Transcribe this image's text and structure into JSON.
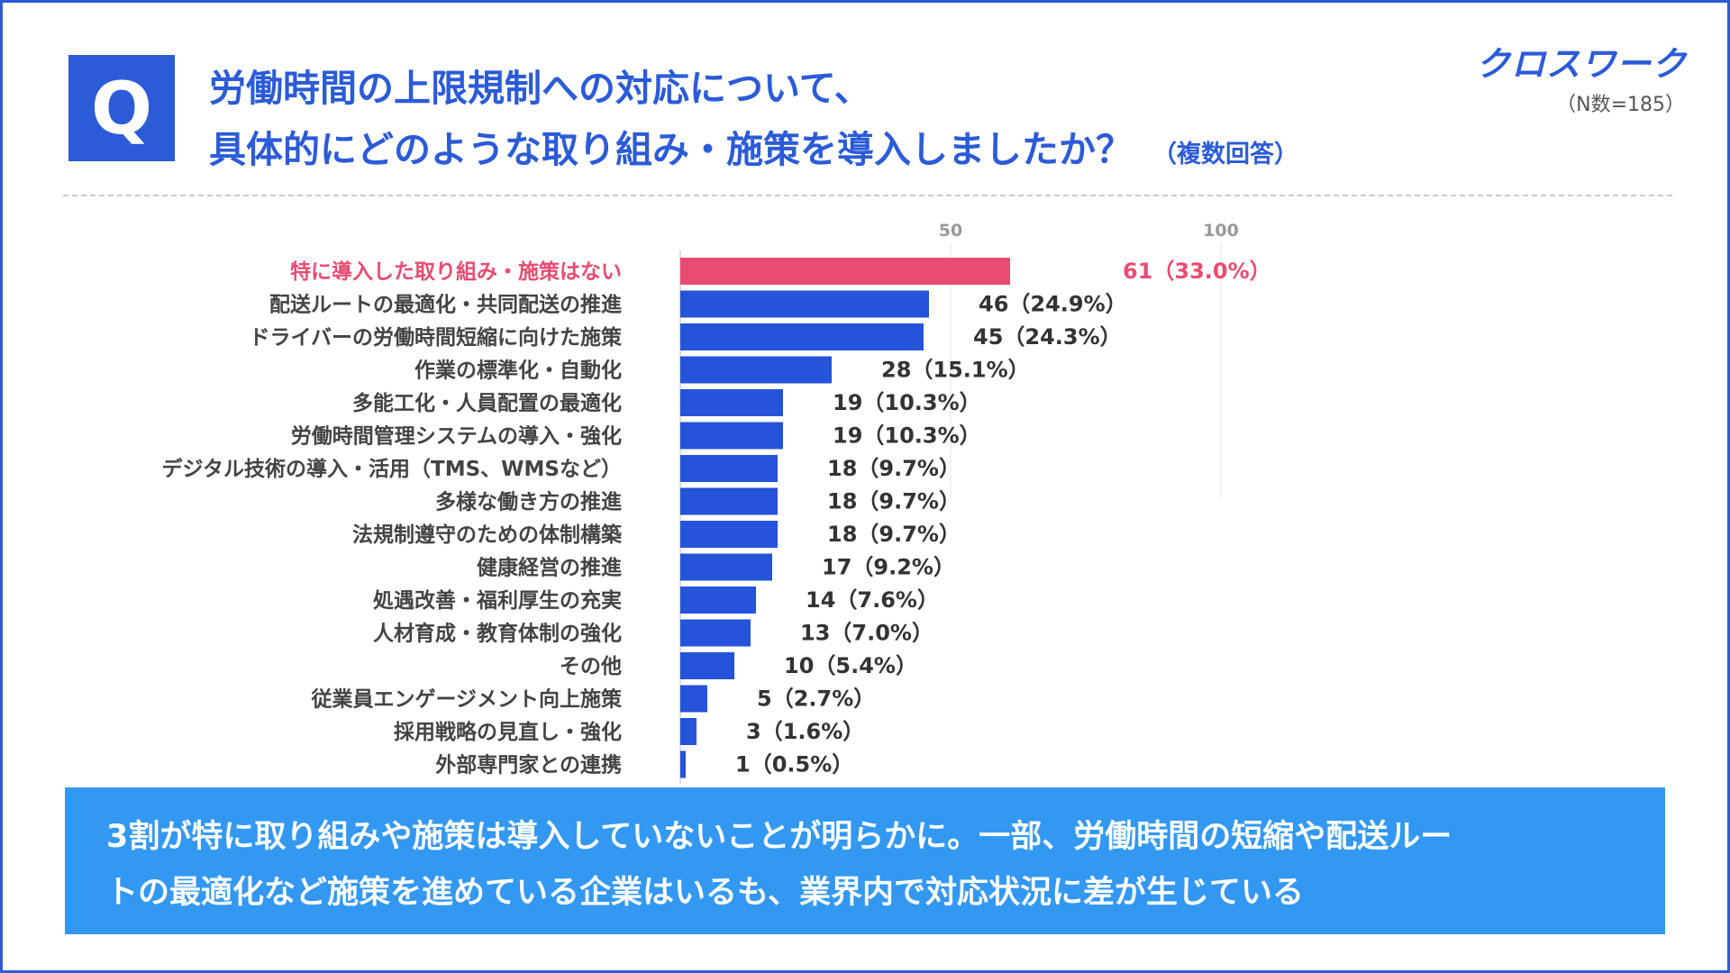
{
  "header": {
    "q_label": "Q",
    "title_line1": "労働時間の上限規制への対応について、",
    "title_line2": "具体的にどのような取り組み・施策を導入しましたか？",
    "title_suffix": "（複数回答）",
    "brand": "クロスワーク",
    "sample_note": "（N数=185）"
  },
  "colors": {
    "accent": "#2b5bd7",
    "highlight": "#e84c72",
    "bar": "#2553d9",
    "banner": "#3398f2"
  },
  "chart_data": {
    "type": "bar",
    "orientation": "horizontal",
    "axis_ticks": [
      50,
      100
    ],
    "xlim": [
      0,
      100
    ],
    "categories": [
      "特に導入した取り組み・施策はない",
      "配送ルートの最適化・共同配送の推進",
      "ドライバーの労働時間短縮に向けた施策",
      "作業の標準化・自動化",
      "多能工化・人員配置の最適化",
      "労働時間管理システムの導入・強化",
      "デジタル技術の導入・活用（TMS、WMSなど）",
      "多様な働き方の推進",
      "法規制遵守のための体制構築",
      "健康経営の推進",
      "処遇改善・福利厚生の充実",
      "人材育成・教育体制の強化",
      "その他",
      "従業員エンゲージメント向上施策",
      "採用戦略の見直し・強化",
      "外部専門家との連携"
    ],
    "values": [
      61,
      46,
      45,
      28,
      19,
      19,
      18,
      18,
      18,
      17,
      14,
      13,
      10,
      5,
      3,
      1
    ],
    "data_labels": [
      "61（33.0%）",
      "46（24.9%）",
      "45（24.3%）",
      "28（15.1%）",
      "19（10.3%）",
      "19（10.3%）",
      "18（9.7%）",
      "18（9.7%）",
      "18（9.7%）",
      "17（9.2%）",
      "14（7.6%）",
      "13（7.0%）",
      "10（5.4%）",
      "5（2.7%）",
      "3（1.6%）",
      "1（0.5%）"
    ],
    "highlight_index": 0
  },
  "summary": {
    "line1": "3割が特に取り組みや施策は導入していないことが明らかに。一部、労働時間の短縮や配送ルー",
    "line2": "トの最適化など施策を進めている企業はいるも、業界内で対応状況に差が生じている"
  }
}
